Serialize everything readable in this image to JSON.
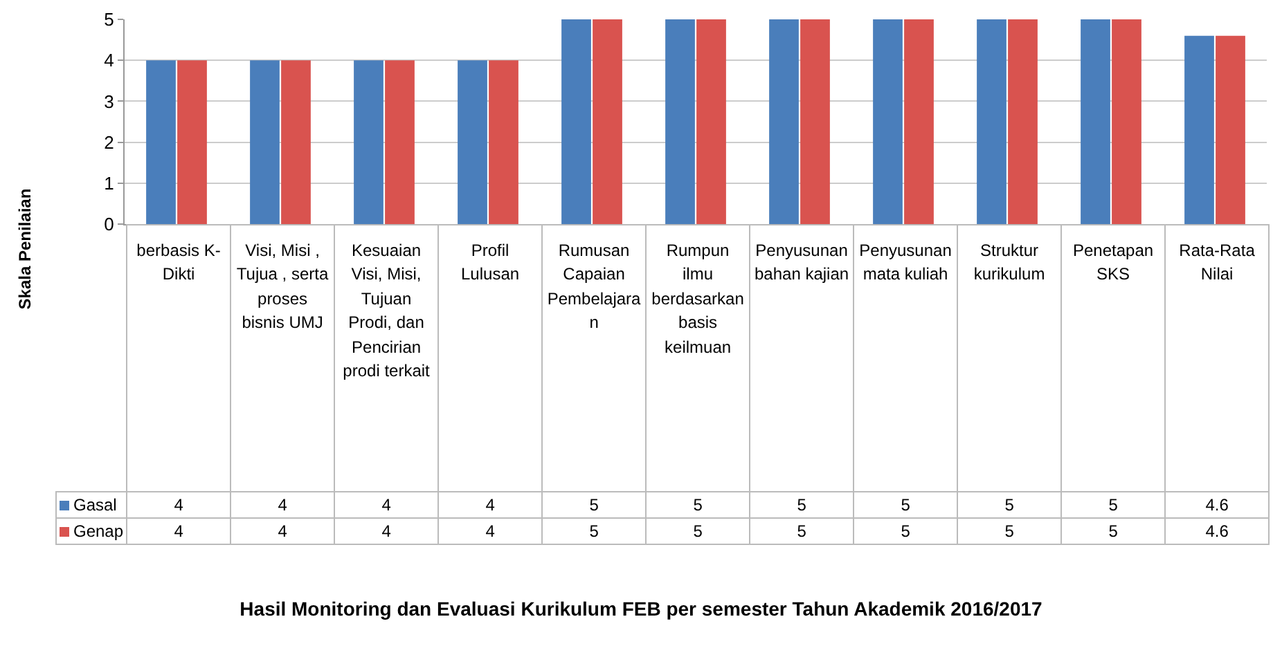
{
  "chart_data": {
    "type": "bar",
    "title": "Hasil Monitoring dan Evaluasi Kurikulum FEB per semester Tahun Akademik 2016/2017",
    "ylabel": "Skala Penilaian",
    "categories": [
      "berbasis K-Dikti",
      "Visi, Misi , Tujua , serta proses bisnis UMJ",
      "Kesuaian Visi, Misi, Tujuan Prodi, dan Pencirian prodi terkait",
      "Profil Lulusan",
      "Rumusan Capaian Pembelajaran",
      "Rumpun ilmu berdasarkan basis keilmuan",
      "Penyusunan bahan kajian",
      "Penyusunan mata kuliah",
      "Struktur kurikulum",
      "Penetapan SKS",
      "Rata-Rata Nilai"
    ],
    "series": [
      {
        "name": "Gasal",
        "color": "#4a7ebb",
        "values": [
          4,
          4,
          4,
          4,
          5,
          5,
          5,
          5,
          5,
          5,
          4.6
        ]
      },
      {
        "name": "Genap",
        "color": "#d9534f",
        "values": [
          4,
          4,
          4,
          4,
          5,
          5,
          5,
          5,
          5,
          5,
          4.6
        ]
      }
    ],
    "ylim": [
      0,
      5
    ],
    "yticks": [
      0,
      1,
      2,
      3,
      4,
      5
    ],
    "grid": "y",
    "data_labels": true,
    "legend": "bottom"
  }
}
